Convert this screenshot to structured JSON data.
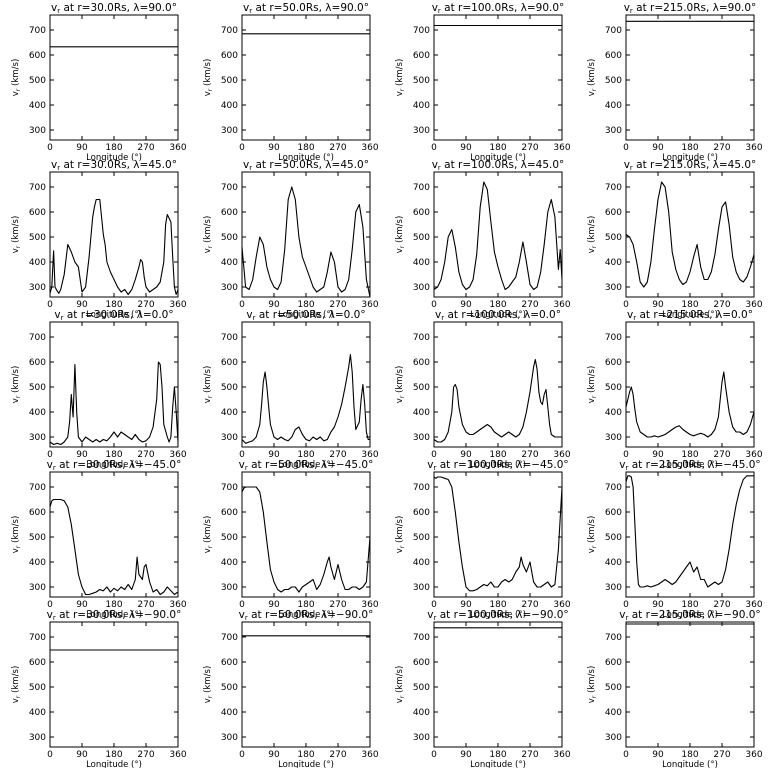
{
  "figure": {
    "x_label": "Longitude (°)",
    "y_label": "vr (km/s)",
    "x_ticks": [
      0,
      90,
      180,
      270,
      360
    ],
    "y_ticks": [
      300,
      400,
      500,
      600,
      700
    ],
    "xlim": [
      0,
      360
    ],
    "ylim": [
      260,
      760
    ],
    "line_color": "#000000"
  },
  "chart_data": [
    {
      "type": "line",
      "title": "vr at r=30.0Rs, λ=90.0°",
      "r": "30.0Rs",
      "lat": "90.0°",
      "x": [
        0,
        360
      ],
      "y": [
        633,
        633
      ]
    },
    {
      "type": "line",
      "title": "vr at r=50.0Rs, λ=90.0°",
      "r": "50.0Rs",
      "lat": "90.0°",
      "x": [
        0,
        360
      ],
      "y": [
        685,
        685
      ]
    },
    {
      "type": "line",
      "title": "vr at r=100.0Rs, λ=90.0°",
      "r": "100.0Rs",
      "lat": "90.0°",
      "x": [
        0,
        360
      ],
      "y": [
        718,
        718
      ]
    },
    {
      "type": "line",
      "title": "vr at r=215.0Rs, λ=90.0°",
      "r": "215.0Rs",
      "lat": "90.0°",
      "x": [
        0,
        360
      ],
      "y": [
        735,
        735
      ]
    },
    {
      "type": "line",
      "title": "vr at r=30.0Rs, λ=45.0°",
      "r": "30.0Rs",
      "lat": "45.0°",
      "x": [
        0,
        5,
        10,
        14,
        20,
        25,
        30,
        40,
        50,
        60,
        70,
        80,
        90,
        100,
        110,
        120,
        125,
        130,
        140,
        150,
        155,
        160,
        170,
        180,
        190,
        200,
        210,
        220,
        230,
        240,
        250,
        255,
        260,
        265,
        270,
        280,
        290,
        300,
        310,
        320,
        325,
        330,
        340,
        345,
        350,
        355,
        360
      ],
      "y": [
        275,
        300,
        445,
        300,
        285,
        275,
        290,
        350,
        470,
        440,
        400,
        380,
        280,
        300,
        420,
        580,
        620,
        650,
        650,
        510,
        470,
        400,
        360,
        330,
        300,
        280,
        290,
        270,
        290,
        330,
        380,
        410,
        400,
        340,
        300,
        280,
        290,
        300,
        320,
        400,
        550,
        590,
        560,
        420,
        300,
        270,
        290
      ]
    },
    {
      "type": "line",
      "title": "vr at r=50.0Rs, λ=45.0°",
      "r": "50.0Rs",
      "lat": "45.0°",
      "x": [
        0,
        5,
        10,
        20,
        30,
        40,
        50,
        60,
        70,
        80,
        90,
        100,
        110,
        120,
        130,
        140,
        150,
        160,
        170,
        180,
        190,
        200,
        210,
        220,
        230,
        240,
        250,
        260,
        270,
        280,
        290,
        300,
        310,
        320,
        330,
        340,
        350,
        360
      ],
      "y": [
        460,
        380,
        300,
        290,
        330,
        420,
        500,
        470,
        380,
        330,
        300,
        290,
        320,
        450,
        650,
        700,
        650,
        500,
        420,
        380,
        340,
        300,
        280,
        290,
        300,
        360,
        440,
        400,
        300,
        280,
        290,
        330,
        450,
        600,
        630,
        540,
        330,
        260
      ]
    },
    {
      "type": "line",
      "title": "vr at r=100.0Rs, λ=45.0°",
      "r": "100.0Rs",
      "lat": "45.0°",
      "x": [
        0,
        10,
        20,
        30,
        40,
        50,
        60,
        70,
        80,
        90,
        100,
        110,
        120,
        130,
        140,
        150,
        160,
        170,
        180,
        190,
        200,
        210,
        220,
        230,
        240,
        250,
        260,
        270,
        280,
        290,
        300,
        310,
        320,
        330,
        340,
        350,
        355,
        360
      ],
      "y": [
        290,
        300,
        330,
        400,
        500,
        530,
        460,
        360,
        310,
        290,
        300,
        330,
        430,
        620,
        720,
        690,
        560,
        440,
        380,
        330,
        290,
        300,
        320,
        340,
        400,
        480,
        400,
        310,
        290,
        300,
        360,
        470,
        600,
        650,
        580,
        370,
        450,
        330
      ]
    },
    {
      "type": "line",
      "title": "vr at r=215.0Rs, λ=45.0°",
      "r": "215.0Rs",
      "lat": "45.0°",
      "x": [
        0,
        10,
        20,
        30,
        40,
        50,
        60,
        70,
        80,
        90,
        100,
        110,
        120,
        130,
        140,
        150,
        160,
        170,
        180,
        190,
        200,
        210,
        220,
        230,
        240,
        250,
        260,
        270,
        280,
        290,
        300,
        310,
        320,
        330,
        340,
        350,
        360
      ],
      "y": [
        510,
        500,
        470,
        400,
        320,
        300,
        320,
        400,
        530,
        650,
        720,
        700,
        600,
        440,
        370,
        330,
        310,
        320,
        360,
        420,
        470,
        380,
        330,
        330,
        360,
        430,
        530,
        620,
        640,
        550,
        420,
        360,
        330,
        320,
        340,
        380,
        430
      ]
    },
    {
      "type": "line",
      "title": "vr at r=30.0Rs, λ=0.0°",
      "r": "30.0Rs",
      "lat": "0.0°",
      "x": [
        0,
        10,
        20,
        30,
        40,
        50,
        55,
        60,
        65,
        70,
        75,
        80,
        90,
        100,
        110,
        120,
        130,
        140,
        150,
        160,
        170,
        180,
        190,
        200,
        210,
        220,
        230,
        240,
        250,
        260,
        270,
        280,
        290,
        300,
        305,
        310,
        315,
        320,
        330,
        335,
        340,
        345,
        350,
        355,
        360
      ],
      "y": [
        280,
        270,
        275,
        270,
        280,
        300,
        360,
        470,
        380,
        590,
        400,
        300,
        280,
        300,
        290,
        280,
        290,
        280,
        290,
        285,
        300,
        320,
        300,
        320,
        310,
        300,
        290,
        310,
        290,
        280,
        285,
        300,
        340,
        450,
        600,
        590,
        500,
        350,
        300,
        280,
        300,
        420,
        500,
        400,
        280
      ]
    },
    {
      "type": "line",
      "title": "vr at r=50.0Rs, λ=0.0°",
      "r": "50.0Rs",
      "lat": "0.0°",
      "x": [
        0,
        10,
        20,
        30,
        40,
        50,
        55,
        60,
        65,
        70,
        75,
        80,
        90,
        100,
        110,
        120,
        130,
        140,
        150,
        160,
        170,
        180,
        190,
        200,
        210,
        220,
        230,
        240,
        250,
        260,
        270,
        280,
        290,
        300,
        305,
        310,
        315,
        320,
        330,
        335,
        340,
        345,
        350,
        355,
        360
      ],
      "y": [
        290,
        275,
        280,
        285,
        300,
        350,
        430,
        520,
        560,
        500,
        420,
        350,
        300,
        290,
        300,
        290,
        285,
        300,
        330,
        340,
        310,
        290,
        285,
        300,
        290,
        300,
        285,
        290,
        320,
        340,
        380,
        430,
        500,
        580,
        630,
        560,
        420,
        330,
        360,
        450,
        510,
        430,
        320,
        290,
        290
      ]
    },
    {
      "type": "line",
      "title": "vr at r=100.0Rs, λ=0.0°",
      "r": "100.0Rs",
      "lat": "0.0°",
      "x": [
        0,
        10,
        20,
        30,
        40,
        50,
        55,
        60,
        65,
        70,
        80,
        90,
        100,
        110,
        120,
        130,
        140,
        150,
        160,
        170,
        180,
        190,
        200,
        210,
        220,
        230,
        240,
        250,
        260,
        270,
        280,
        285,
        290,
        295,
        300,
        305,
        310,
        315,
        320,
        325,
        330,
        340,
        350,
        360
      ],
      "y": [
        290,
        280,
        280,
        290,
        320,
        400,
        500,
        510,
        490,
        420,
        350,
        320,
        310,
        310,
        320,
        330,
        340,
        350,
        340,
        320,
        310,
        300,
        310,
        320,
        310,
        300,
        310,
        340,
        400,
        480,
        580,
        610,
        570,
        480,
        440,
        430,
        470,
        490,
        420,
        350,
        310,
        300,
        300,
        300
      ]
    },
    {
      "type": "line",
      "title": "vr at r=215.0Rs, λ=0.0°",
      "r": "215.0Rs",
      "lat": "0.0°",
      "x": [
        0,
        10,
        15,
        20,
        25,
        30,
        40,
        50,
        60,
        70,
        80,
        90,
        100,
        110,
        120,
        130,
        140,
        150,
        160,
        170,
        180,
        190,
        200,
        210,
        220,
        230,
        240,
        250,
        260,
        265,
        270,
        275,
        280,
        290,
        300,
        310,
        320,
        330,
        340,
        350,
        360
      ],
      "y": [
        420,
        480,
        500,
        470,
        410,
        360,
        320,
        310,
        300,
        300,
        305,
        300,
        305,
        310,
        320,
        330,
        340,
        345,
        330,
        320,
        310,
        305,
        310,
        315,
        310,
        300,
        310,
        330,
        380,
        450,
        520,
        560,
        500,
        400,
        340,
        320,
        320,
        310,
        320,
        350,
        400
      ]
    },
    {
      "type": "line",
      "title": "vr at r=30.0Rs, λ=-45.0°",
      "r": "30.0Rs",
      "lat": "−45.0°",
      "x": [
        0,
        5,
        10,
        20,
        30,
        40,
        50,
        60,
        70,
        80,
        90,
        100,
        110,
        120,
        130,
        140,
        150,
        160,
        170,
        180,
        190,
        200,
        210,
        220,
        230,
        240,
        245,
        250,
        260,
        265,
        270,
        280,
        290,
        300,
        310,
        320,
        330,
        340,
        350,
        360
      ],
      "y": [
        620,
        645,
        650,
        650,
        650,
        645,
        620,
        550,
        450,
        350,
        300,
        270,
        270,
        275,
        280,
        290,
        285,
        300,
        280,
        295,
        285,
        300,
        290,
        310,
        290,
        330,
        420,
        350,
        330,
        380,
        390,
        320,
        280,
        290,
        270,
        280,
        300,
        285,
        270,
        280
      ]
    },
    {
      "type": "line",
      "title": "vr at r=50.0Rs, λ=-45.0°",
      "r": "50.0Rs",
      "lat": "−45.0°",
      "x": [
        0,
        5,
        10,
        20,
        30,
        40,
        50,
        60,
        70,
        80,
        90,
        100,
        110,
        120,
        130,
        140,
        150,
        160,
        170,
        180,
        190,
        200,
        210,
        220,
        230,
        240,
        245,
        250,
        260,
        265,
        270,
        280,
        290,
        300,
        310,
        320,
        330,
        340,
        350,
        360
      ],
      "y": [
        680,
        695,
        700,
        700,
        700,
        700,
        680,
        600,
        480,
        370,
        320,
        290,
        280,
        290,
        290,
        300,
        300,
        280,
        300,
        310,
        320,
        330,
        290,
        310,
        350,
        400,
        420,
        380,
        330,
        360,
        390,
        330,
        290,
        290,
        300,
        300,
        290,
        300,
        320,
        500
      ]
    },
    {
      "type": "line",
      "title": "vr at r=100.0Rs, λ=-45.0°",
      "r": "100.0Rs",
      "lat": "−45.0°",
      "x": [
        0,
        5,
        10,
        20,
        30,
        40,
        50,
        60,
        70,
        80,
        90,
        100,
        110,
        120,
        130,
        140,
        150,
        160,
        170,
        180,
        190,
        200,
        210,
        220,
        230,
        240,
        245,
        250,
        260,
        270,
        280,
        290,
        300,
        310,
        320,
        330,
        340,
        350,
        360
      ],
      "y": [
        740,
        735,
        740,
        740,
        735,
        730,
        700,
        600,
        480,
        380,
        300,
        285,
        285,
        290,
        300,
        310,
        305,
        320,
        300,
        300,
        320,
        330,
        320,
        330,
        360,
        380,
        420,
        390,
        360,
        400,
        320,
        300,
        300,
        310,
        320,
        300,
        310,
        450,
        700
      ]
    },
    {
      "type": "line",
      "title": "vr at r=215.0Rs, λ=-45.0°",
      "r": "215.0Rs",
      "lat": "−45.0°",
      "x": [
        0,
        5,
        10,
        15,
        20,
        25,
        30,
        35,
        40,
        50,
        60,
        70,
        80,
        90,
        100,
        110,
        120,
        130,
        140,
        150,
        160,
        170,
        180,
        190,
        200,
        210,
        220,
        230,
        240,
        250,
        260,
        270,
        280,
        290,
        300,
        310,
        320,
        330,
        340,
        350,
        360
      ],
      "y": [
        720,
        745,
        745,
        740,
        700,
        550,
        400,
        310,
        300,
        300,
        305,
        300,
        305,
        310,
        320,
        330,
        320,
        310,
        320,
        340,
        360,
        380,
        400,
        360,
        380,
        330,
        330,
        300,
        310,
        320,
        310,
        320,
        370,
        450,
        550,
        630,
        690,
        730,
        745,
        745,
        745
      ]
    },
    {
      "type": "line",
      "title": "vr at r=30.0Rs, λ=-90.0°",
      "r": "30.0Rs",
      "lat": "−90.0°",
      "x": [
        0,
        360
      ],
      "y": [
        648,
        648
      ]
    },
    {
      "type": "line",
      "title": "vr at r=50.0Rs, λ=-90.0°",
      "r": "50.0Rs",
      "lat": "−90.0°",
      "x": [
        0,
        360
      ],
      "y": [
        705,
        705
      ]
    },
    {
      "type": "line",
      "title": "vr at r=100.0Rs, λ=-90.0°",
      "r": "100.0Rs",
      "lat": "−90.0°",
      "x": [
        0,
        360
      ],
      "y": [
        737,
        737
      ]
    },
    {
      "type": "line",
      "title": "vr at r=215.0Rs, λ=-90.0°",
      "r": "215.0Rs",
      "lat": "−90.0°",
      "x": [
        0,
        360
      ],
      "y": [
        752,
        752
      ]
    }
  ]
}
